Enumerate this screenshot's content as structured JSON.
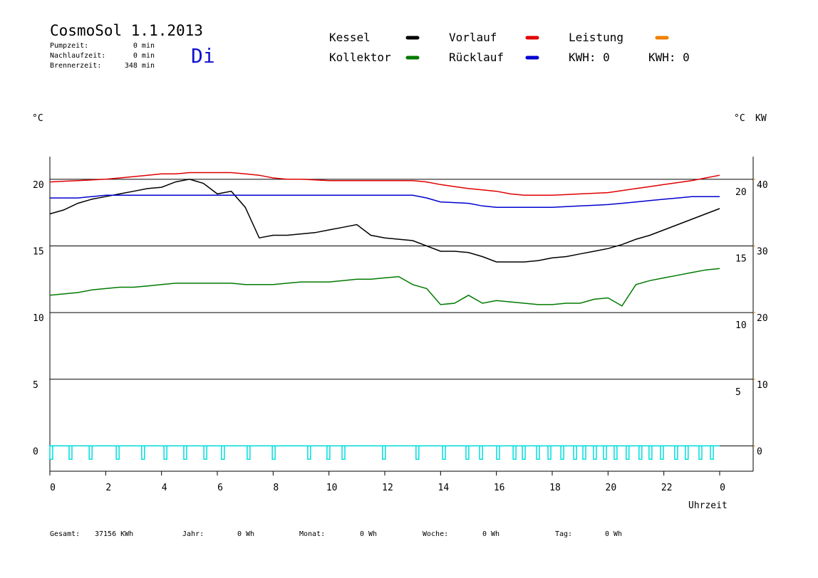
{
  "chart_data": {
    "type": "line",
    "title": "CosmoSol 1.1.2013",
    "info": [
      [
        "Pumpzeit:",
        "0 min"
      ],
      [
        "Nachlaufzeit:",
        "0 min"
      ],
      [
        "Brennerzeit:",
        "348 min"
      ]
    ],
    "day": "Di",
    "kwh": [
      {
        "label": "KWH: 0",
        "color": "#e08a00"
      },
      {
        "label": "KWH: 0",
        "color": "#800080"
      }
    ],
    "y_label": "°C",
    "y_label_right": "°C",
    "y2_label": "KW",
    "x_label": "Uhrzeit",
    "x": [
      0,
      0.5,
      1,
      1.5,
      2,
      2.5,
      3,
      3.5,
      4,
      4.5,
      5,
      5.5,
      6,
      6.5,
      7,
      7.5,
      8,
      8.5,
      9,
      9.5,
      10,
      10.5,
      11,
      11.5,
      12,
      12.5,
      13,
      13.5,
      14,
      14.5,
      15,
      15.5,
      16,
      16.5,
      17,
      17.5,
      18,
      18.5,
      19,
      19.5,
      20,
      20.5,
      21,
      21.5,
      22,
      22.5,
      23,
      23.5,
      24
    ],
    "series": [
      {
        "name": "Kessel",
        "color": "#000000",
        "values": [
          17.4,
          17.7,
          18.2,
          18.5,
          18.7,
          18.9,
          19.1,
          19.3,
          19.4,
          19.8,
          20.0,
          19.7,
          18.9,
          19.1,
          17.9,
          15.6,
          15.8,
          15.8,
          15.9,
          16.0,
          16.2,
          16.4,
          16.6,
          15.8,
          15.6,
          15.5,
          15.4,
          15.0,
          14.6,
          14.6,
          14.5,
          14.2,
          13.8,
          13.8,
          13.8,
          13.9,
          14.1,
          14.2,
          14.4,
          14.6,
          14.8,
          15.1,
          15.5,
          15.8,
          16.2,
          16.6,
          17.0,
          17.4,
          17.8
        ]
      },
      {
        "name": "Vorlauf",
        "color": "#e00000",
        "values": [
          19.8,
          19.85,
          19.9,
          19.95,
          20.0,
          20.1,
          20.2,
          20.3,
          20.4,
          20.4,
          20.5,
          20.5,
          20.5,
          20.5,
          20.4,
          20.3,
          20.1,
          20.0,
          20.0,
          19.95,
          19.9,
          19.9,
          19.9,
          19.9,
          19.9,
          19.9,
          19.9,
          19.8,
          19.6,
          19.45,
          19.3,
          19.2,
          19.1,
          18.9,
          18.8,
          18.8,
          18.8,
          18.85,
          18.9,
          18.95,
          19.0,
          19.15,
          19.3,
          19.45,
          19.6,
          19.75,
          19.9,
          20.1,
          20.3
        ]
      },
      {
        "name": "Leistung",
        "color": "#f08000"
      },
      {
        "name": "Kollektor",
        "color": "#007a00",
        "values": [
          11.3,
          11.4,
          11.5,
          11.7,
          11.8,
          11.9,
          11.9,
          12.0,
          12.1,
          12.2,
          12.2,
          12.2,
          12.2,
          12.2,
          12.1,
          12.1,
          12.1,
          12.2,
          12.3,
          12.3,
          12.3,
          12.4,
          12.5,
          12.5,
          12.6,
          12.7,
          12.1,
          11.8,
          10.6,
          10.7,
          11.3,
          10.7,
          10.9,
          10.8,
          10.7,
          10.6,
          10.6,
          10.7,
          10.7,
          11.0,
          11.1,
          10.5,
          12.1,
          12.4,
          12.6,
          12.8,
          13.0,
          13.2,
          13.3
        ]
      },
      {
        "name": "Rücklauf",
        "color": "#0000d0",
        "values": [
          18.6,
          18.6,
          18.6,
          18.7,
          18.8,
          18.8,
          18.8,
          18.8,
          18.8,
          18.8,
          18.8,
          18.8,
          18.8,
          18.8,
          18.8,
          18.8,
          18.8,
          18.8,
          18.8,
          18.8,
          18.8,
          18.8,
          18.8,
          18.8,
          18.8,
          18.8,
          18.8,
          18.6,
          18.3,
          18.25,
          18.2,
          18.0,
          17.9,
          17.9,
          17.9,
          17.9,
          17.9,
          17.95,
          18.0,
          18.05,
          18.1,
          18.2,
          18.3,
          18.4,
          18.5,
          18.6,
          18.7,
          18.7,
          18.7
        ]
      }
    ],
    "pulses": {
      "color": "#00dede",
      "low": -1,
      "x": [
        0.05,
        0.74,
        1.46,
        2.43,
        3.34,
        4.14,
        4.85,
        5.57,
        6.2,
        7.12,
        8.02,
        9.29,
        9.98,
        10.52,
        11.97,
        13.17,
        14.12,
        14.96,
        15.45,
        16.06,
        16.65,
        16.98,
        17.49,
        17.9,
        18.36,
        18.82,
        19.15,
        19.53,
        19.89,
        20.27,
        20.7,
        21.16,
        21.52,
        21.93,
        22.44,
        22.82,
        23.31,
        23.72
      ]
    },
    "xlim": [
      0,
      24
    ],
    "xticks": [
      0,
      2,
      4,
      6,
      8,
      10,
      12,
      14,
      16,
      18,
      20,
      22,
      {
        "value": 24,
        "label": "0"
      }
    ],
    "ylim": [
      -1.9,
      21.7
    ],
    "yticks": [
      0,
      5,
      10,
      15,
      20
    ],
    "yticks_right": [
      5,
      10,
      15,
      20
    ],
    "y2lim": [
      -3.8,
      43.4
    ],
    "y2ticks": [
      0,
      10,
      20,
      30,
      40
    ],
    "y2_color": "#e08a00",
    "grid": true,
    "footer": [
      [
        "Gesamt:",
        "37156 KWh"
      ],
      [
        "Jahr:",
        "0 Wh"
      ],
      [
        "Monat:",
        "0 Wh"
      ],
      [
        "Woche:",
        "0 Wh"
      ],
      [
        "Tag:",
        "0 Wh"
      ]
    ]
  }
}
